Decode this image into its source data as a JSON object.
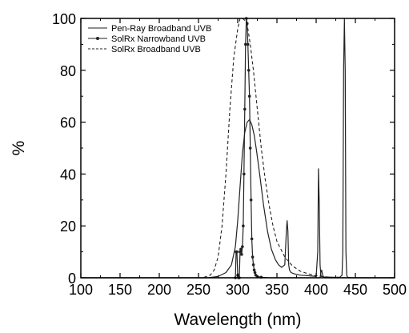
{
  "chart_data": {
    "type": "line",
    "title": "",
    "xlabel": "Wavelength (nm)",
    "ylabel": "%",
    "xlim": [
      100,
      500
    ],
    "ylim": [
      0,
      100
    ],
    "xticks": [
      "100",
      "150",
      "200",
      "250",
      "300",
      "350",
      "400",
      "450",
      "500"
    ],
    "yticks": [
      "0",
      "20",
      "40",
      "60",
      "80",
      "100"
    ],
    "grid": false,
    "legend_position": "top-left",
    "series": [
      {
        "name": "Pen-Ray Broadband UVB",
        "style": "solid",
        "color": "#222222",
        "x": [
          100,
          262,
          275,
          285,
          292,
          297,
          300,
          303,
          306,
          309,
          312,
          315,
          318,
          321,
          324,
          328,
          333,
          338,
          343,
          348,
          352,
          356,
          360,
          362,
          363,
          364,
          365,
          366,
          368,
          372,
          380,
          390,
          400,
          402,
          403,
          404,
          405,
          406,
          407,
          410,
          420,
          430,
          433,
          434,
          435,
          436,
          437,
          438,
          439,
          440,
          445,
          500
        ],
        "y": [
          0,
          0,
          0.5,
          2,
          5,
          12,
          22,
          35,
          48,
          56,
          60,
          61,
          59,
          55,
          49,
          40,
          28,
          18,
          11,
          7,
          5,
          4,
          5,
          18,
          22,
          18,
          5,
          3,
          2,
          1.5,
          1,
          0.8,
          0.5,
          10,
          42,
          28,
          5,
          1,
          0.5,
          0.3,
          0.2,
          0.2,
          1,
          10,
          80,
          100,
          80,
          10,
          1,
          0.2,
          0,
          0
        ]
      },
      {
        "name": "SolRx Narrowband UVB",
        "style": "solid-markers",
        "color": "#222222",
        "x": [
          100,
          297,
          298,
          299,
          300,
          301,
          302,
          303,
          304,
          305,
          306,
          307,
          308,
          309,
          310,
          311,
          312,
          313,
          314,
          315,
          316,
          317,
          318,
          319,
          320,
          321,
          322,
          323,
          325,
          330,
          340,
          405,
          406,
          407,
          408,
          409,
          410,
          411,
          415,
          500
        ],
        "y": [
          0,
          0,
          10,
          10,
          1,
          0,
          0,
          10,
          11,
          9,
          12,
          20,
          40,
          65,
          90,
          100,
          98,
          90,
          80,
          70,
          50,
          30,
          15,
          8,
          5,
          3,
          2,
          1,
          0.5,
          0.2,
          0,
          0,
          2,
          3,
          1.5,
          0.5,
          0.2,
          0,
          0,
          0
        ]
      },
      {
        "name": "SolRx Broadband UVB",
        "style": "dashed",
        "color": "#222222",
        "x": [
          100,
          255,
          265,
          270,
          275,
          280,
          285,
          290,
          295,
          300,
          303,
          306,
          310,
          313,
          316,
          320,
          325,
          330,
          335,
          340,
          345,
          350,
          360,
          370,
          380,
          390,
          400,
          410,
          420,
          440,
          460,
          500
        ],
        "y": [
          0,
          0,
          1,
          3,
          8,
          20,
          40,
          65,
          85,
          96,
          100,
          100,
          99,
          96,
          90,
          80,
          65,
          50,
          38,
          28,
          20,
          14,
          8,
          4.5,
          2.5,
          1.5,
          0.8,
          0.4,
          0.2,
          0,
          0,
          0
        ]
      }
    ]
  }
}
